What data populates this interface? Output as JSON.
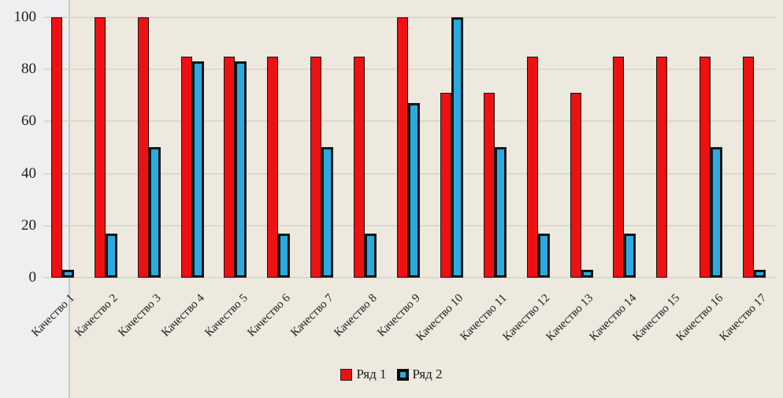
{
  "chart_data": {
    "type": "bar",
    "title": "",
    "categories": [
      "Качество 1",
      "Качество 2",
      "Качество 3",
      "Качество 4",
      "Качество 5",
      "Качество 6",
      "Качество 7",
      "Качество 8",
      "Качество 9",
      "Качество 10",
      "Качество 11",
      "Качество 12",
      "Качество 13",
      "Качество 14",
      "Качество 15",
      "Качество 16",
      "Качество 17"
    ],
    "series": [
      {
        "name": "Ряд 1",
        "color": "#ee1111",
        "values": [
          100,
          100,
          100,
          85,
          85,
          85,
          85,
          85,
          100,
          71,
          71,
          85,
          71,
          85,
          85,
          85,
          85
        ]
      },
      {
        "name": "Ряд 2",
        "color": "#2baae2",
        "values": [
          3,
          17,
          50,
          83,
          83,
          17,
          50,
          17,
          67,
          100,
          50,
          17,
          3,
          17,
          0,
          50,
          3
        ]
      }
    ],
    "xlabel": "",
    "ylabel": "",
    "ylim": [
      0,
      100
    ],
    "yticks": [
      0,
      20,
      40,
      60,
      80,
      100
    ],
    "grid": "horizontal",
    "legend_position": "bottom",
    "xlabel_rotation_deg": 45
  },
  "colors": {
    "background": "#ede9de",
    "margin_strip": "#eeeff1",
    "divider": "#c7c6c0",
    "gridline": "#dcd8ce",
    "text": "#1c1c1c",
    "bar_border": "#151515",
    "series1": "#ee1111",
    "series2": "#2baae2"
  }
}
